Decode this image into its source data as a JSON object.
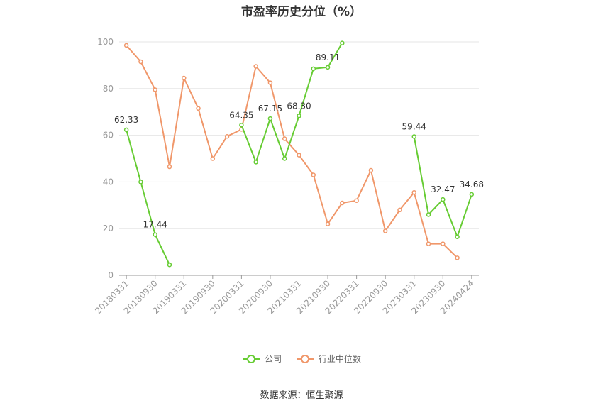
{
  "chart_data": {
    "type": "line",
    "title": "市盈率历史分位（%）",
    "ylim": [
      0,
      100
    ],
    "yticks": [
      0,
      20,
      40,
      60,
      80,
      100
    ],
    "grid": true,
    "legend_position": "bottom",
    "x": [
      "20180331",
      "20180630",
      "20180930",
      "20181231",
      "20190331",
      "20190630",
      "20190930",
      "20191231",
      "20200331",
      "20200630",
      "20200930",
      "20201231",
      "20210331",
      "20210630",
      "20210930",
      "20211231",
      "20220331",
      "20220630",
      "20220930",
      "20221231",
      "20230331",
      "20230630",
      "20230930",
      "20231231",
      "20240424"
    ],
    "xtick_labels": [
      "20180331",
      "20180930",
      "20190331",
      "20190930",
      "20200331",
      "20200930",
      "20210331",
      "20210930",
      "20220331",
      "20220930",
      "20230331",
      "20230930",
      "20240424"
    ],
    "series": [
      {
        "name": "公司",
        "color": "#66cc33",
        "values": [
          62.33,
          40.0,
          17.44,
          4.5,
          null,
          null,
          null,
          null,
          64.35,
          48.5,
          67.15,
          50.0,
          68.3,
          88.5,
          89.11,
          99.5,
          null,
          null,
          null,
          null,
          59.44,
          26.0,
          32.47,
          16.5,
          34.68
        ],
        "labels": {
          "0": "62.33",
          "2": "17.44",
          "8": "64.35",
          "10": "67.15",
          "12": "68.30",
          "14": "89.11",
          "20": "59.44",
          "22": "32.47",
          "24": "34.68"
        }
      },
      {
        "name": "行业中位数",
        "color": "#f0976a",
        "values": [
          98.5,
          91.5,
          79.5,
          46.5,
          84.5,
          71.5,
          50.0,
          59.5,
          62.5,
          89.5,
          82.5,
          58.5,
          51.5,
          43.0,
          22.0,
          31.0,
          32.0,
          45.0,
          19.0,
          28.0,
          35.5,
          13.5,
          13.5,
          7.5,
          null
        ]
      }
    ]
  },
  "legend": {
    "company_label": "公司",
    "industry_label": "行业中位数"
  },
  "footer": {
    "source": "数据来源：恒生聚源"
  }
}
